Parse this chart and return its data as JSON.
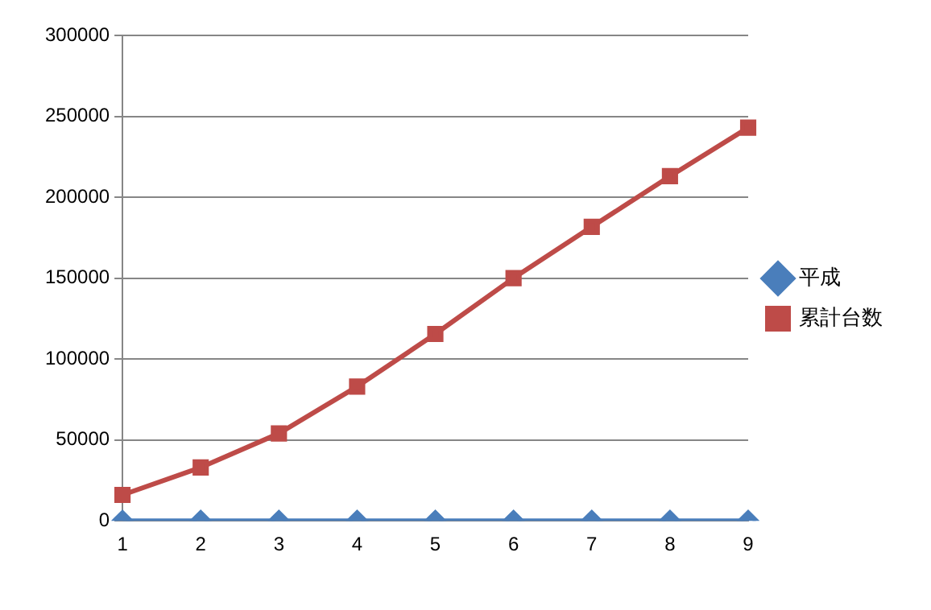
{
  "chart_data": {
    "type": "line",
    "categories": [
      "1",
      "2",
      "3",
      "4",
      "5",
      "6",
      "7",
      "8",
      "9"
    ],
    "series": [
      {
        "name": "平成",
        "color": "#4a7ebb",
        "values": [
          0,
          0,
          0,
          0,
          0,
          0,
          0,
          0,
          0
        ],
        "marker": "diamond"
      },
      {
        "name": "累計台数",
        "color": "#be4b48",
        "values": [
          16000,
          33000,
          54000,
          83000,
          115500,
          150000,
          181700,
          213000,
          243000
        ],
        "marker": "square"
      }
    ],
    "ylim": [
      0,
      300000
    ],
    "yticks": [
      0,
      50000,
      100000,
      150000,
      200000,
      250000,
      300000
    ],
    "grid": "y",
    "legend": "right"
  }
}
